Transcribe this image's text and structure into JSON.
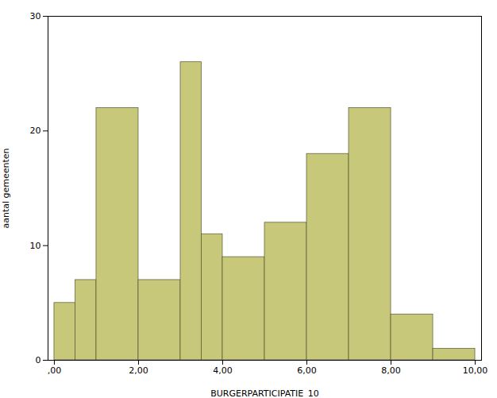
{
  "chart_data": {
    "type": "histogram",
    "bins": [
      0.0,
      0.5,
      1.0,
      2.0,
      3.0,
      3.5,
      4.0,
      5.0,
      6.0,
      7.0,
      8.0,
      9.0,
      10.0
    ],
    "values": [
      5,
      7,
      22,
      7,
      26,
      11,
      9,
      12,
      18,
      22,
      4,
      1
    ],
    "color": "#c8c87a",
    "xlabel": "BURGERPARTICIPATIE_10",
    "ylabel": "aantal gemeenten",
    "xlim": [
      -0.15,
      10.15
    ],
    "ylim": [
      0,
      30
    ],
    "xticks": [
      {
        "value": 0.0,
        "label": ",00"
      },
      {
        "value": 2.0,
        "label": "2,00"
      },
      {
        "value": 4.0,
        "label": "4,00"
      },
      {
        "value": 6.0,
        "label": "6,00"
      },
      {
        "value": 8.0,
        "label": "8,00"
      },
      {
        "value": 10.0,
        "label": "10,00"
      }
    ],
    "yticks": [
      0,
      10,
      20,
      30
    ]
  }
}
